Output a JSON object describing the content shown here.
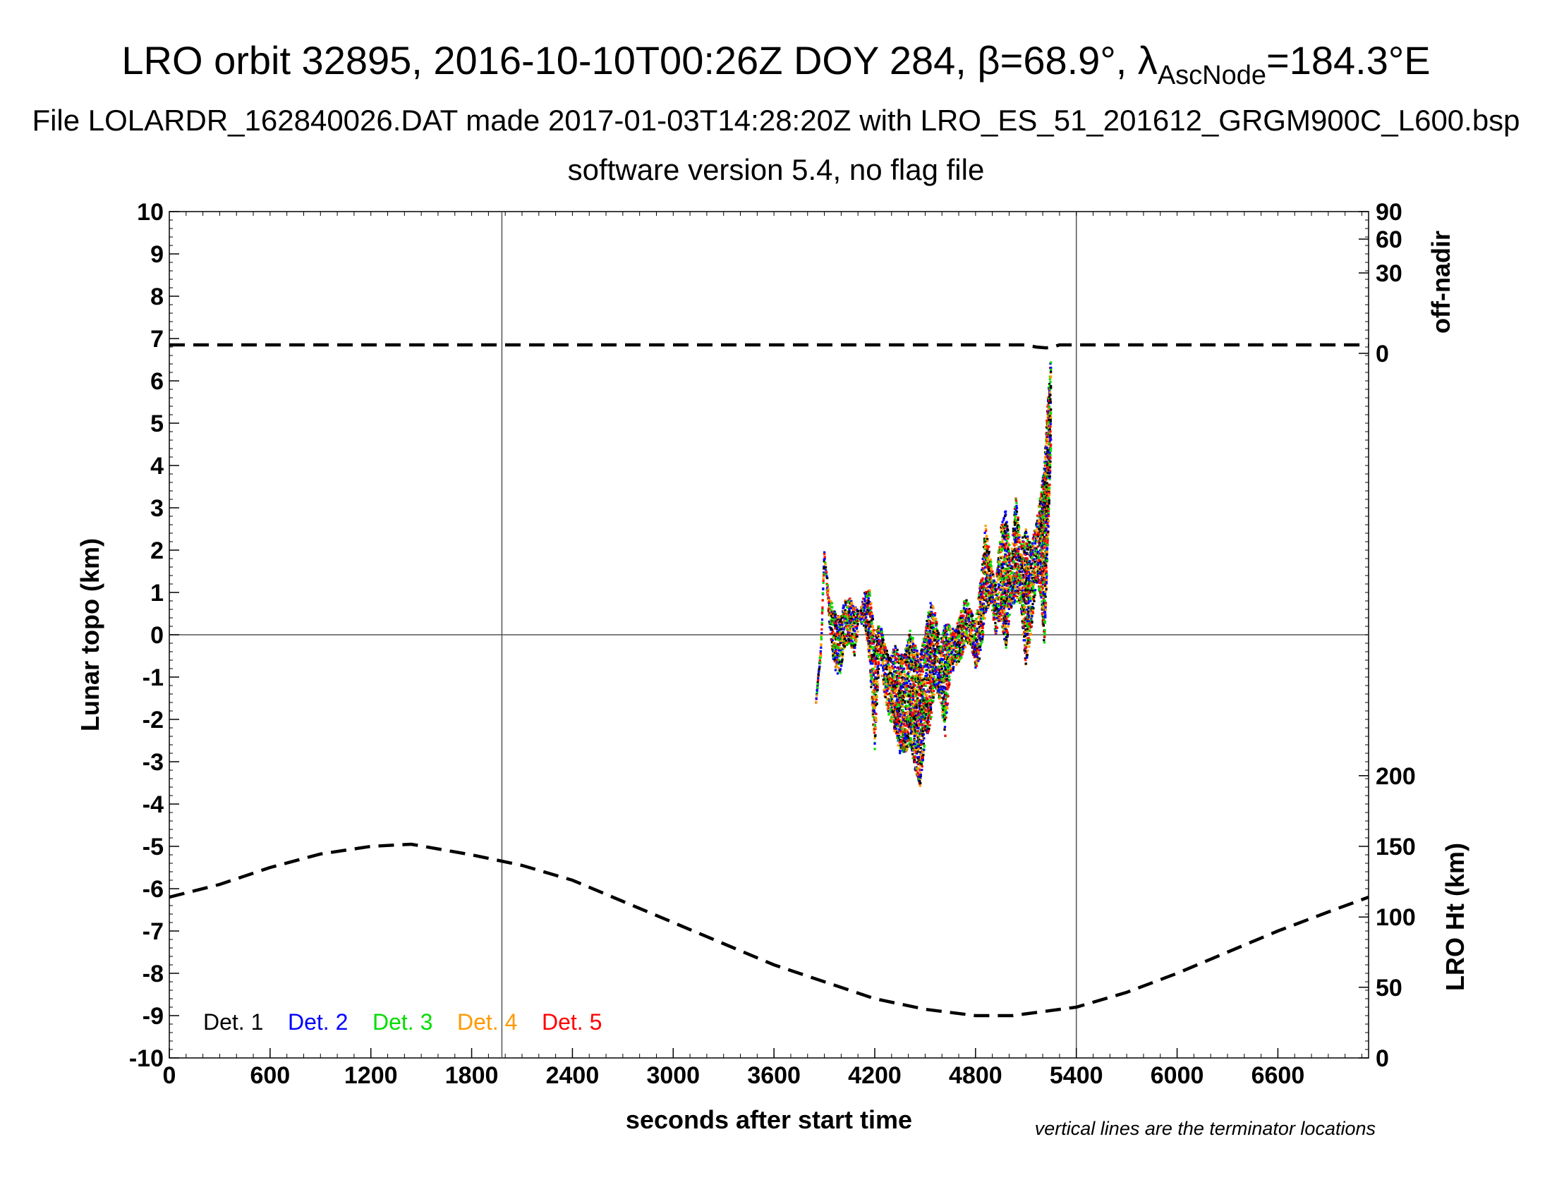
{
  "chart_data": {
    "type": "scatter",
    "title": "LRO orbit 32895, 2016-10-10T00:26Z DOY 284, β=68.9°, λ",
    "title_sub": "AscNode",
    "title_tail": "=184.3°E",
    "subtitle": "File LOLARDR_162840026.DAT made 2017-01-03T14:28:20Z with LRO_ES_51_201612_GRGM900C_L600.bsp",
    "subtitle2": "software version 5.4, no flag file",
    "xlabel": "seconds after start time",
    "ylabel": "Lunar topo (km)",
    "y2label_top": "off-nadir",
    "y2label_bottom": "LRO Ht (km)",
    "note": "vertical lines are the terminator locations",
    "xlim": [
      0,
      7140
    ],
    "ylim": [
      -10,
      10
    ],
    "x_ticks": [
      0,
      600,
      1200,
      1800,
      2400,
      3000,
      3600,
      4200,
      4800,
      5400,
      6000,
      6600
    ],
    "y_ticks": [
      10,
      9,
      8,
      7,
      6,
      5,
      4,
      3,
      2,
      1,
      0,
      -1,
      -2,
      -3,
      -4,
      -5,
      -6,
      -7,
      -8,
      -9,
      -10
    ],
    "offnadir_ticks": [
      {
        "label": "90",
        "y": 10.0
      },
      {
        "label": "60",
        "y": 9.35
      },
      {
        "label": "30",
        "y": 8.55
      },
      {
        "label": "0",
        "y": 6.65
      }
    ],
    "height_ticks": [
      {
        "label": "200",
        "y": -3.33
      },
      {
        "label": "150",
        "y": -5.0
      },
      {
        "label": "100",
        "y": -6.67
      },
      {
        "label": "50",
        "y": -8.33
      },
      {
        "label": "0",
        "y": -10.0
      }
    ],
    "terminator_x": [
      1980,
      5400
    ],
    "zero_line_y": 0,
    "legend": [
      {
        "label": "Det. 1",
        "color": "#000000"
      },
      {
        "label": "Det. 2",
        "color": "#0000ff"
      },
      {
        "label": "Det. 3",
        "color": "#00dd00"
      },
      {
        "label": "Det. 4",
        "color": "#ff9900"
      },
      {
        "label": "Det. 5",
        "color": "#ff0000"
      }
    ],
    "series": [
      {
        "name": "off-nadir",
        "style": "dashed",
        "x": [
          0,
          5100,
          5160,
          5220,
          5260,
          5300,
          7140
        ],
        "y": [
          6.85,
          6.85,
          6.8,
          6.78,
          6.8,
          6.85,
          6.85
        ]
      },
      {
        "name": "LRO Ht",
        "style": "dashed",
        "x": [
          0,
          300,
          600,
          900,
          1200,
          1440,
          1800,
          2100,
          2400,
          2700,
          3000,
          3300,
          3600,
          3900,
          4200,
          4500,
          4800,
          5020,
          5400,
          5700,
          6000,
          6300,
          6600,
          6900,
          7140
        ],
        "y": [
          -6.2,
          -5.9,
          -5.5,
          -5.18,
          -5.0,
          -4.95,
          -5.2,
          -5.45,
          -5.8,
          -6.3,
          -6.8,
          -7.3,
          -7.8,
          -8.2,
          -8.6,
          -8.85,
          -9.0,
          -9.0,
          -8.8,
          -8.45,
          -8.0,
          -7.5,
          -7.0,
          -6.55,
          -6.2
        ]
      },
      {
        "name": "Lunar topo",
        "style": "points",
        "profile_x": [
          3850,
          3880,
          3900,
          3930,
          3960,
          3990,
          4020,
          4050,
          4080,
          4110,
          4140,
          4170,
          4200,
          4230,
          4260,
          4290,
          4320,
          4350,
          4380,
          4410,
          4440,
          4470,
          4500,
          4530,
          4560,
          4590,
          4620,
          4650,
          4680,
          4710,
          4740,
          4770,
          4800,
          4830,
          4860,
          4890,
          4920,
          4950,
          4980,
          5010,
          5040,
          5070,
          5100,
          5130,
          5160,
          5190,
          5210,
          5230,
          5250
        ],
        "profile_lo": [
          -1.6,
          -0.5,
          1.9,
          0.2,
          -0.8,
          -1.0,
          -0.3,
          -0.2,
          -0.5,
          0.3,
          0.2,
          -0.7,
          -2.7,
          -0.5,
          -1.5,
          -2.0,
          -2.3,
          -2.8,
          -2.8,
          -2.6,
          -3.2,
          -3.6,
          -2.5,
          -2.2,
          -1.2,
          -1.6,
          -2.4,
          -0.9,
          -0.8,
          -0.6,
          -0.3,
          -0.2,
          -0.8,
          -0.5,
          0.5,
          0.8,
          0.0,
          0.4,
          -0.4,
          0.6,
          0.8,
          0.7,
          -0.8,
          0.0,
          1.2,
          0.9,
          -0.3,
          2.0,
          4.5
        ],
        "profile_hi": [
          -1.6,
          -0.2,
          1.95,
          0.9,
          0.6,
          0.4,
          0.8,
          0.9,
          0.7,
          0.5,
          1.0,
          1.1,
          0.0,
          0.3,
          -0.2,
          -0.6,
          -0.2,
          -0.5,
          -0.4,
          0.1,
          -0.2,
          -0.5,
          0.1,
          0.8,
          0.6,
          -0.2,
          0.3,
          0.2,
          0.1,
          0.5,
          0.9,
          0.6,
          0.3,
          1.3,
          2.6,
          1.8,
          1.2,
          2.5,
          3.0,
          1.8,
          3.3,
          2.2,
          2.5,
          2.1,
          2.6,
          3.4,
          4.0,
          5.5,
          6.7
        ]
      }
    ]
  }
}
